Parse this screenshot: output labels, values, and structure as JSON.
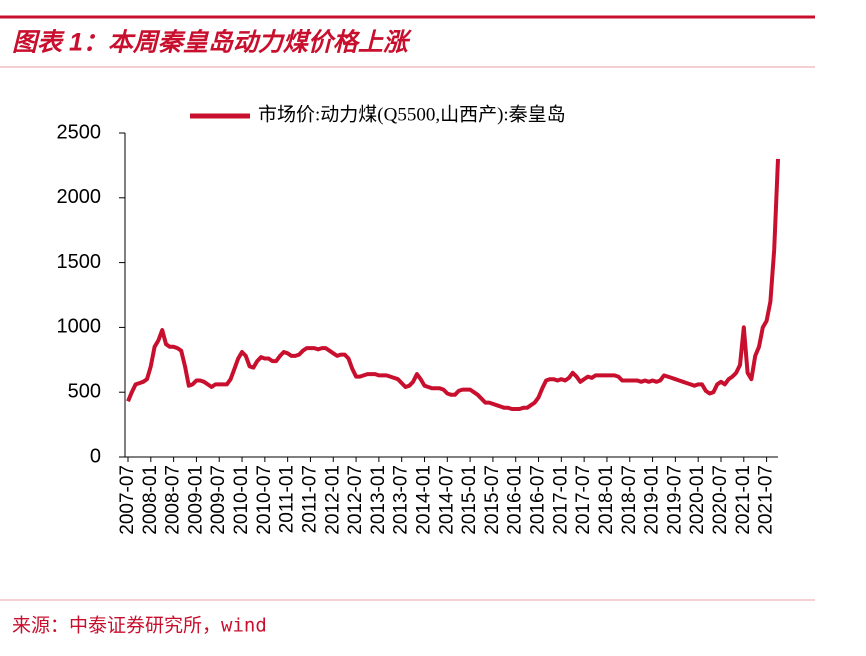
{
  "chart_data": {
    "type": "line",
    "title": "图表 1：本周秦皇岛动力煤价格上涨",
    "source": "来源：中泰证券研究所，wind",
    "x": [
      "2007-07",
      "2007-08",
      "2007-09",
      "2007-10",
      "2007-11",
      "2007-12",
      "2008-01",
      "2008-02",
      "2008-03",
      "2008-04",
      "2008-05",
      "2008-06",
      "2008-07",
      "2008-08",
      "2008-09",
      "2008-10",
      "2008-11",
      "2008-12",
      "2009-01",
      "2009-02",
      "2009-03",
      "2009-04",
      "2009-05",
      "2009-06",
      "2009-07",
      "2009-08",
      "2009-09",
      "2009-10",
      "2009-11",
      "2009-12",
      "2010-01",
      "2010-02",
      "2010-03",
      "2010-04",
      "2010-05",
      "2010-06",
      "2010-07",
      "2010-08",
      "2010-09",
      "2010-10",
      "2010-11",
      "2010-12",
      "2011-01",
      "2011-02",
      "2011-03",
      "2011-04",
      "2011-05",
      "2011-06",
      "2011-07",
      "2011-08",
      "2011-09",
      "2011-10",
      "2011-11",
      "2011-12",
      "2012-01",
      "2012-02",
      "2012-03",
      "2012-04",
      "2012-05",
      "2012-06",
      "2012-07",
      "2012-08",
      "2012-09",
      "2012-10",
      "2012-11",
      "2012-12",
      "2013-01",
      "2013-02",
      "2013-03",
      "2013-04",
      "2013-05",
      "2013-06",
      "2013-07",
      "2013-08",
      "2013-09",
      "2013-10",
      "2013-11",
      "2013-12",
      "2014-01",
      "2014-02",
      "2014-03",
      "2014-04",
      "2014-05",
      "2014-06",
      "2014-07",
      "2014-08",
      "2014-09",
      "2014-10",
      "2014-11",
      "2014-12",
      "2015-01",
      "2015-02",
      "2015-03",
      "2015-04",
      "2015-05",
      "2015-06",
      "2015-07",
      "2015-08",
      "2015-09",
      "2015-10",
      "2015-11",
      "2015-12",
      "2016-01",
      "2016-02",
      "2016-03",
      "2016-04",
      "2016-05",
      "2016-06",
      "2016-07",
      "2016-08",
      "2016-09",
      "2016-10",
      "2016-11",
      "2016-12",
      "2017-01",
      "2017-02",
      "2017-03",
      "2017-04",
      "2017-05",
      "2017-06",
      "2017-07",
      "2017-08",
      "2017-09",
      "2017-10",
      "2017-11",
      "2017-12",
      "2018-01",
      "2018-02",
      "2018-03",
      "2018-04",
      "2018-05",
      "2018-06",
      "2018-07",
      "2018-08",
      "2018-09",
      "2018-10",
      "2018-11",
      "2018-12",
      "2019-01",
      "2019-02",
      "2019-03",
      "2019-04",
      "2019-05",
      "2019-06",
      "2019-07",
      "2019-08",
      "2019-09",
      "2019-10",
      "2019-11",
      "2019-12",
      "2020-01",
      "2020-02",
      "2020-03",
      "2020-04",
      "2020-05",
      "2020-06",
      "2020-07",
      "2020-08",
      "2020-09",
      "2020-10",
      "2020-11",
      "2020-12",
      "2021-01",
      "2021-02",
      "2021-03",
      "2021-04",
      "2021-05",
      "2021-06",
      "2021-07",
      "2021-08",
      "2021-09",
      "2021-10"
    ],
    "series": [
      {
        "name": "市场价:动力煤(Q5500,山西产):秦皇岛",
        "color": "#c8102e",
        "values": [
          430,
          500,
          560,
          570,
          580,
          600,
          700,
          850,
          900,
          980,
          870,
          850,
          850,
          840,
          820,
          700,
          550,
          560,
          590,
          590,
          580,
          560,
          540,
          560,
          560,
          560,
          560,
          600,
          680,
          760,
          810,
          780,
          700,
          690,
          740,
          770,
          760,
          760,
          740,
          740,
          780,
          810,
          800,
          780,
          780,
          790,
          820,
          840,
          840,
          840,
          830,
          840,
          840,
          820,
          800,
          780,
          790,
          790,
          760,
          680,
          620,
          620,
          630,
          640,
          640,
          640,
          630,
          630,
          630,
          620,
          610,
          600,
          570,
          540,
          550,
          580,
          640,
          600,
          550,
          540,
          530,
          530,
          530,
          520,
          490,
          480,
          480,
          510,
          520,
          520,
          520,
          500,
          480,
          450,
          420,
          420,
          410,
          400,
          390,
          380,
          380,
          370,
          370,
          370,
          380,
          380,
          400,
          420,
          460,
          530,
          590,
          600,
          600,
          590,
          600,
          590,
          610,
          650,
          620,
          580,
          600,
          620,
          610,
          630,
          630,
          630,
          630,
          630,
          630,
          620,
          590,
          590,
          590,
          590,
          590,
          580,
          590,
          580,
          590,
          580,
          590,
          630,
          620,
          610,
          600,
          590,
          580,
          570,
          560,
          550,
          560,
          560,
          510,
          490,
          500,
          560,
          580,
          560,
          600,
          620,
          650,
          710,
          1000,
          650,
          600,
          780,
          850,
          1000,
          1050,
          1200,
          1600,
          2300
        ]
      }
    ],
    "xlim": [
      "2007-07",
      "2021-10"
    ],
    "xticks": [
      "2007-07",
      "2008-01",
      "2008-07",
      "2009-01",
      "2009-07",
      "2010-01",
      "2010-07",
      "2011-01",
      "2011-07",
      "2012-01",
      "2012-07",
      "2013-01",
      "2013-07",
      "2014-01",
      "2014-07",
      "2015-01",
      "2015-07",
      "2016-01",
      "2016-07",
      "2017-01",
      "2017-07",
      "2018-01",
      "2018-07",
      "2019-01",
      "2019-07",
      "2020-01",
      "2020-07",
      "2021-01",
      "2021-07"
    ],
    "ylim": [
      0,
      2500
    ],
    "yticks": [
      0,
      500,
      1000,
      1500,
      2000,
      2500
    ],
    "legend": "top"
  }
}
